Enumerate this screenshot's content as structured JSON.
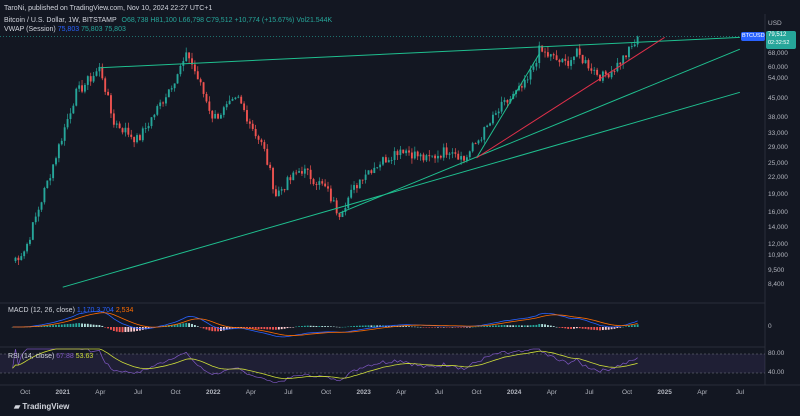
{
  "header": {
    "publisher": "TaroNi, published on TradingView.com, Nov 10, 2024 22:27 UTC+1",
    "symbol_line": "Bitcoin / U.S. Dollar, 1W, BITSTAMP",
    "ohlc": {
      "o": "O68,738",
      "h": "H81,100",
      "l": "L66,798",
      "c": "C79,512",
      "chg": "+10,774 (+15.67%)",
      "vol": "Vol21.544K"
    },
    "vwap_label": "VWAP (Session)",
    "vwap_values": [
      "75,803",
      "75,803",
      "75,803"
    ]
  },
  "currency": "USD",
  "price_badge": {
    "symbol": "BTCUSD",
    "price": "79,512",
    "countdown": "02:32:52"
  },
  "macd": {
    "label": "MACD (12, 26, close)",
    "values": [
      "1,170",
      "3,704",
      "2,534"
    ]
  },
  "rsi": {
    "label": "RSI (14, close)",
    "values": [
      "67.88",
      "53.63"
    ]
  },
  "footer_brand": "TradingView",
  "colors": {
    "up": "#26a69a",
    "down": "#ef5350",
    "trend_green": "#1fbf8f",
    "trend_red": "#e0304a",
    "macd": "#2962ff",
    "signal": "#ff6d00",
    "rsi": "#7e57c2",
    "rsi_ma": "#cddc39"
  },
  "chart_data": {
    "type": "candlestick",
    "scale": "log",
    "interval": "1W",
    "x_ticks": [
      "Oct",
      "2021",
      "Apr",
      "Jul",
      "Oct",
      "2022",
      "Apr",
      "Jul",
      "Oct",
      "2023",
      "Apr",
      "Jul",
      "Oct",
      "2024",
      "Apr",
      "Jul",
      "Oct",
      "2025",
      "Apr",
      "Jul"
    ],
    "y_ticks": [
      "68,000",
      "60,000",
      "54,000",
      "45,000",
      "38,000",
      "33,000",
      "29,000",
      "25,000",
      "22,000",
      "19,000",
      "16,000",
      "14,000",
      "12,000",
      "10,900",
      "9,500",
      "8,400"
    ],
    "macd_y_ticks": [
      "0"
    ],
    "rsi_y_ticks": [
      "80.00",
      "40.00"
    ],
    "price_path": [
      {
        "t": "2020-09",
        "p": 10400
      },
      {
        "t": "2020-10",
        "p": 11500
      },
      {
        "t": "2020-12",
        "p": 23000
      },
      {
        "t": "2021-02",
        "p": 47000
      },
      {
        "t": "2021-04",
        "p": 60000
      },
      {
        "t": "2021-05",
        "p": 37000
      },
      {
        "t": "2021-07",
        "p": 31000
      },
      {
        "t": "2021-09",
        "p": 45000
      },
      {
        "t": "2021-11",
        "p": 68000
      },
      {
        "t": "2022-01",
        "p": 38000
      },
      {
        "t": "2022-03",
        "p": 45000
      },
      {
        "t": "2022-05",
        "p": 29000
      },
      {
        "t": "2022-06",
        "p": 19000
      },
      {
        "t": "2022-08",
        "p": 24000
      },
      {
        "t": "2022-10",
        "p": 20000
      },
      {
        "t": "2022-11",
        "p": 16000
      },
      {
        "t": "2023-01",
        "p": 23000
      },
      {
        "t": "2023-04",
        "p": 29000
      },
      {
        "t": "2023-06",
        "p": 26000
      },
      {
        "t": "2023-08",
        "p": 29000
      },
      {
        "t": "2023-09",
        "p": 26000
      },
      {
        "t": "2023-12",
        "p": 42000
      },
      {
        "t": "2024-02",
        "p": 52000
      },
      {
        "t": "2024-03",
        "p": 70000
      },
      {
        "t": "2024-05",
        "p": 62000
      },
      {
        "t": "2024-06",
        "p": 68000
      },
      {
        "t": "2024-08",
        "p": 55000
      },
      {
        "t": "2024-09",
        "p": 60000
      },
      {
        "t": "2024-10",
        "p": 68000
      },
      {
        "t": "2024-11",
        "p": 79512
      }
    ],
    "trendlines": [
      {
        "color": "green",
        "from": {
          "t": "2021-04",
          "p": 60000
        },
        "to": {
          "t": "2025-07",
          "p": 79000
        }
      },
      {
        "color": "green",
        "from": {
          "t": "2022-11",
          "p": 16000
        },
        "to": {
          "t": "2025-07",
          "p": 71000
        }
      },
      {
        "color": "green",
        "from": {
          "t": "2021-01",
          "p": 8200
        },
        "to": {
          "t": "2025-07",
          "p": 48000
        }
      },
      {
        "color": "green",
        "from": {
          "t": "2023-10",
          "p": 26500
        },
        "to": {
          "t": "2024-03",
          "p": 68000
        }
      },
      {
        "color": "red",
        "from": {
          "t": "2023-10",
          "p": 26500
        },
        "to": {
          "t": "2025-01",
          "p": 79000
        }
      }
    ]
  }
}
